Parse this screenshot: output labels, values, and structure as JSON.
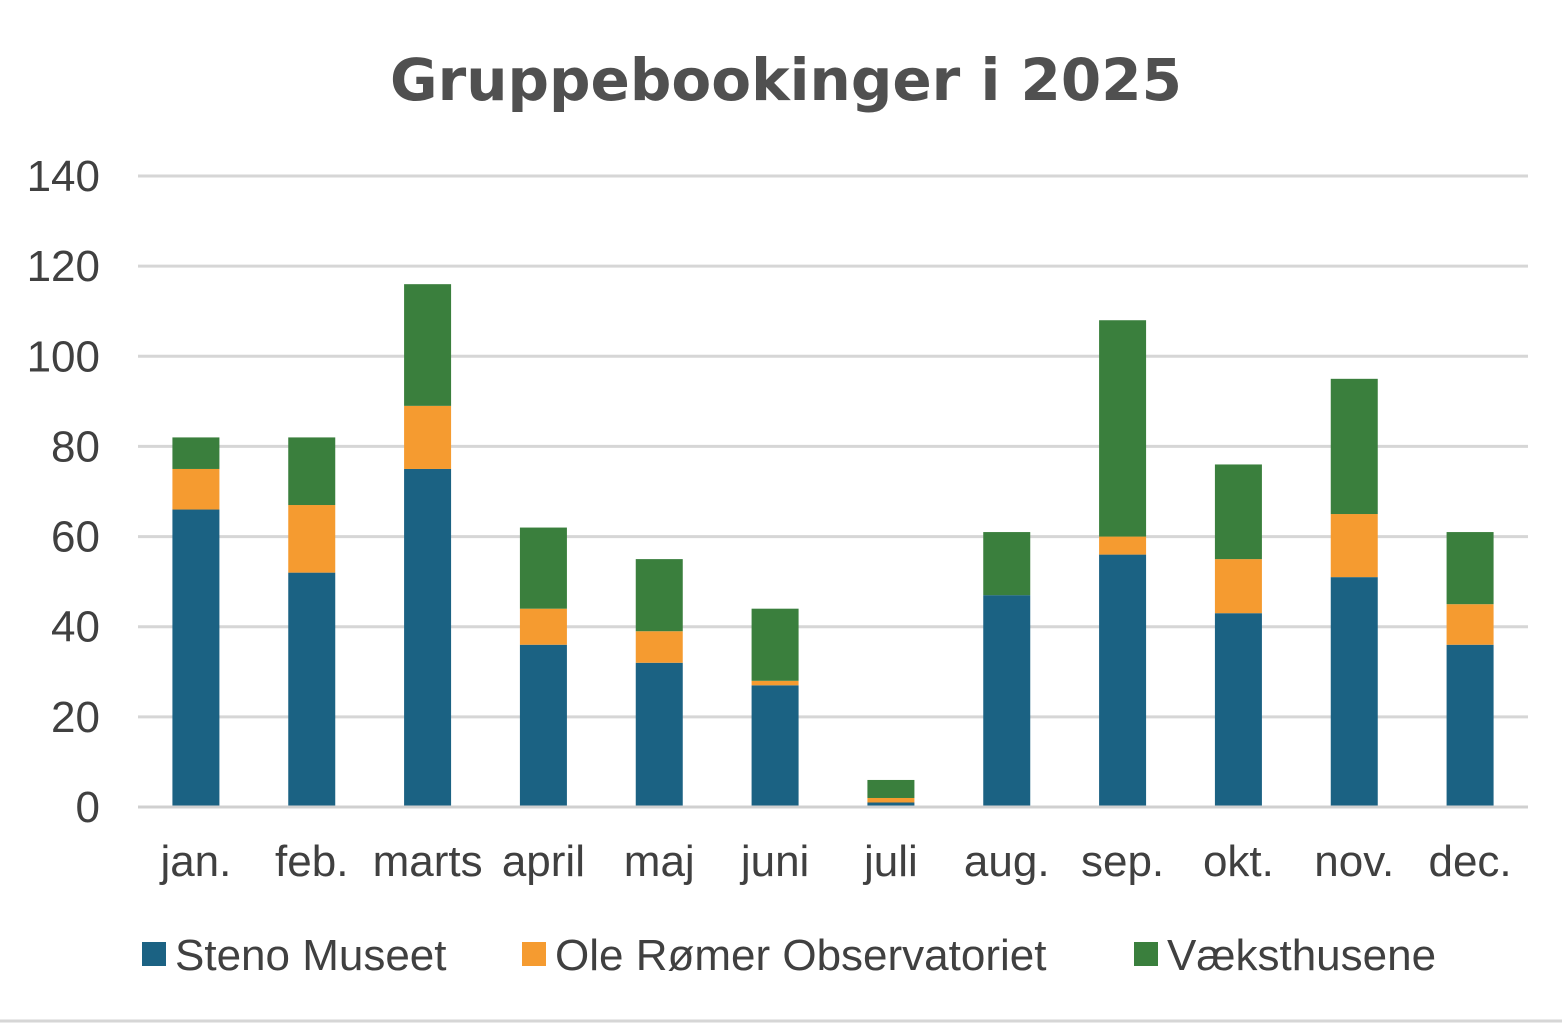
{
  "chart_data": {
    "type": "bar",
    "stacked": true,
    "title": "Gruppebookinger i 2025",
    "xlabel": "",
    "ylabel": "",
    "ylim": [
      0,
      140
    ],
    "yticks": [
      "0",
      "20",
      "40",
      "60",
      "80",
      "100",
      "120",
      "140"
    ],
    "grid": true,
    "legend_position": "bottom",
    "categories": [
      "jan.",
      "feb.",
      "marts",
      "april",
      "maj",
      "juni",
      "juli",
      "aug.",
      "sep.",
      "okt.",
      "nov.",
      "dec."
    ],
    "series": [
      {
        "name": "Steno Museet",
        "color": "#1b6283",
        "values": [
          66,
          52,
          75,
          36,
          32,
          27,
          1,
          47,
          56,
          43,
          51,
          36
        ]
      },
      {
        "name": "Ole Rømer Observatoriet",
        "color": "#f59b30",
        "values": [
          9,
          15,
          14,
          8,
          7,
          1,
          1,
          0,
          4,
          12,
          14,
          9
        ]
      },
      {
        "name": "Væksthusene",
        "color": "#3a7f3d",
        "values": [
          7,
          15,
          27,
          18,
          16,
          16,
          4,
          14,
          48,
          21,
          30,
          16
        ]
      }
    ]
  }
}
